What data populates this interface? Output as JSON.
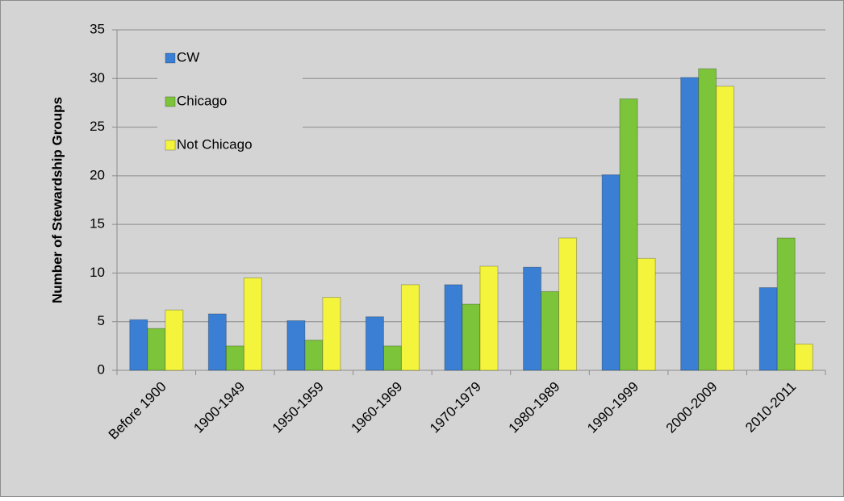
{
  "chart_data": {
    "type": "bar",
    "y_label": "Number of Stewardship Groups",
    "categories": [
      "Before 1900",
      "1900-1949",
      "1950-1959",
      "1960-1969",
      "1970-1979",
      "1980-1989",
      "1990-1999",
      "2000-2009",
      "2010-2011"
    ],
    "series": [
      {
        "name": "CW",
        "color": "#3a7fd4",
        "values": [
          5.2,
          5.8,
          5.1,
          5.5,
          8.8,
          10.6,
          20.1,
          30.1,
          8.5
        ]
      },
      {
        "name": "Chicago",
        "color": "#7cc43a",
        "values": [
          4.3,
          2.5,
          3.1,
          2.5,
          6.8,
          8.1,
          27.9,
          31,
          13.6
        ]
      },
      {
        "name": "Not Chicago",
        "color": "#f4f43c",
        "values": [
          6.2,
          9.5,
          7.5,
          8.8,
          10.7,
          13.6,
          11.5,
          29.2,
          2.7
        ]
      }
    ],
    "ylim": [
      0,
      35
    ],
    "yticks": [
      0,
      5,
      10,
      15,
      20,
      25,
      30,
      35
    ],
    "grid": true,
    "legend": "top-left"
  }
}
